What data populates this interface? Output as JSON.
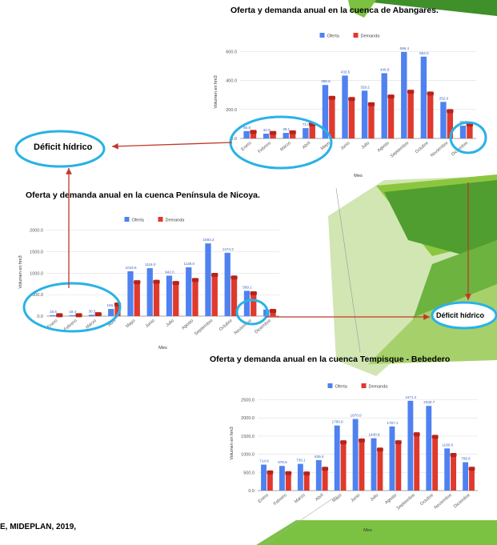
{
  "colors": {
    "oferta": "#4f81f0",
    "demanda": "#e0392d",
    "callout": "#29b2e6",
    "arrow": "#c0392b"
  },
  "deficit_labels": [
    "Déficit hídrico",
    "Déficit hídrico"
  ],
  "source_text": "E, MIDEPLAN, 2019,",
  "chart_data": [
    {
      "type": "bar",
      "title": "Oferta y demanda anual en la cuenca de Abangares.",
      "xlabel": "Mes",
      "ylabel": "Volumen en hm3",
      "legend_position": "top",
      "categories": [
        "Enero",
        "Febrero",
        "Marzo",
        "Abril",
        "Mayo",
        "Junio",
        "Julio",
        "Agosto",
        "Septiembre",
        "Octubre",
        "Noviembre",
        "Diciembre"
      ],
      "series": [
        {
          "name": "Oferta",
          "values": [
            50.6,
            32.9,
            38.1,
            71.0,
            368.5,
            433.5,
            329.2,
            449.9,
            596.4,
            564.0,
            252.0,
            88.0
          ]
        },
        {
          "name": "Demanda",
          "values": [
            45.0,
            38.0,
            42.0,
            98.0,
            280.0,
            272.0,
            236.0,
            289.0,
            322.0,
            310.0,
            188.0,
            96.0
          ]
        }
      ],
      "yticks": [
        0,
        200,
        400,
        600
      ],
      "ytick_labels": [
        "0.0",
        "200.0",
        "400.0",
        "600.0"
      ],
      "ylim": [
        0,
        640
      ],
      "data_labels": [
        "50.6",
        "32.9",
        "38.1",
        "71.0",
        "368.5",
        "433.5",
        "329.2",
        "449.9",
        "596.4",
        "564.0",
        "252.0",
        "88.0"
      ],
      "grid": true
    },
    {
      "type": "bar",
      "title": "Oferta y demanda anual en la cuenca Península de Nicoya.",
      "xlabel": "Mes",
      "ylabel": "Volumen en hm3",
      "legend_position": "top",
      "categories": [
        "Enero",
        "Febrero",
        "Marzo",
        "Abril",
        "Mayo",
        "Junio",
        "Julio",
        "Agosto",
        "Septiembre",
        "Octubre",
        "Noviembre",
        "Diciembre"
      ],
      "series": [
        {
          "name": "Oferta",
          "values": [
            19.6,
            19.4,
            30.5,
            166.7,
            1043.6,
            1116.0,
            942.0,
            1136.0,
            1693.2,
            1474.2,
            589.1,
            152.0
          ]
        },
        {
          "name": "Demanda",
          "values": [
            22.0,
            21.0,
            45.0,
            270.0,
            790.0,
            800.0,
            770.0,
            840.0,
            960.0,
            900.0,
            530.0,
            120.0
          ]
        }
      ],
      "yticks": [
        0,
        500,
        1000,
        1500,
        2000
      ],
      "ytick_labels": [
        "0.0",
        "500.0",
        "1000.0",
        "1500.0",
        "2000.0"
      ],
      "ylim": [
        0,
        2050
      ],
      "data_labels": [
        "19.6",
        "19.4",
        "30.5",
        "166.7",
        "1043.6",
        "1116.0",
        "942.0",
        "1136.0",
        "1693.2",
        "1474.2",
        "589.1",
        ""
      ],
      "grid": true
    },
    {
      "type": "bar",
      "title": "Oferta y demanda anual en la cuenca Tempisque - Bebedero",
      "xlabel": "Mes",
      "ylabel": "Volumen en hm3",
      "legend_position": "top",
      "categories": [
        "Enero",
        "Febrero",
        "Marzo",
        "Abril",
        "Mayo",
        "Junio",
        "Julio",
        "Agosto",
        "Septiembre",
        "Octubre",
        "Noviembre",
        "Diciembre"
      ],
      "series": [
        {
          "name": "Oferta",
          "values": [
            714.6,
            678.5,
            736.1,
            839.4,
            1790.6,
            1970.0,
            1440.8,
            1767.1,
            2471.2,
            2330.7,
            1160.6,
            780.6
          ]
        },
        {
          "name": "Demanda",
          "values": [
            500.0,
            480.0,
            470.0,
            600.0,
            1330.0,
            1380.0,
            1130.0,
            1330.0,
            1550.0,
            1480.0,
            980.0,
            600.0
          ]
        }
      ],
      "yticks": [
        0,
        500,
        1000,
        1500,
        2000,
        2500
      ],
      "ytick_labels": [
        "0.0",
        "500.0",
        "1000.0",
        "1500.0",
        "2000.0",
        "2500.0"
      ],
      "ylim": [
        0,
        2600
      ],
      "data_labels": [
        "714.6",
        "678.5",
        "736.1",
        "839.4",
        "1790.6",
        "1970.0",
        "1440.8",
        "1767.1",
        "2471.2",
        "2330.7",
        "1160.6",
        "780.6"
      ],
      "grid": true
    }
  ]
}
